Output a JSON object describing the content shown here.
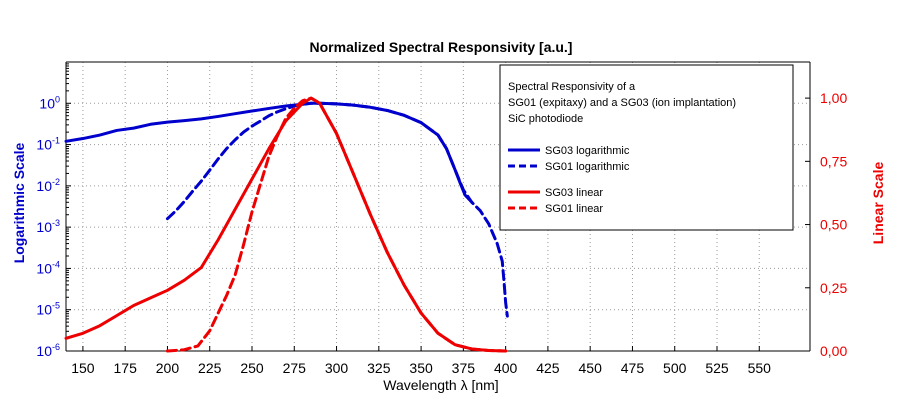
{
  "chart_data": {
    "type": "line",
    "title": "Normalized Spectral Responsivity [a.u.]",
    "xlabel": "Wavelength λ [nm]",
    "ylabel_left": "Logarithmic Scale",
    "ylabel_right": "Linear Scale",
    "xlim": [
      140,
      580
    ],
    "ylim_left": [
      1e-06,
      10
    ],
    "ylim_right": [
      0,
      1.1428
    ],
    "left_scale": "log",
    "right_scale": "linear",
    "grid": true,
    "legend_position": "top-right",
    "legend_title": [
      "Spectral Responsivity of a",
      "SG01 (expitaxy) and a SG03 (ion implantation)",
      "SiC photodiode"
    ],
    "x_ticks": [
      "150",
      "175",
      "200",
      "225",
      "250",
      "275",
      "300",
      "325",
      "350",
      "375",
      "400",
      "425",
      "450",
      "475",
      "500",
      "525",
      "550"
    ],
    "x_tick_values": [
      150,
      175,
      200,
      225,
      250,
      275,
      300,
      325,
      350,
      375,
      400,
      425,
      450,
      475,
      500,
      525,
      550
    ],
    "left_ticks": [
      {
        "base": "10",
        "exp": "0",
        "value": 1
      },
      {
        "base": "10",
        "exp": "-1",
        "value": 0.1
      },
      {
        "base": "10",
        "exp": "-2",
        "value": 0.01
      },
      {
        "base": "10",
        "exp": "-3",
        "value": 0.001
      },
      {
        "base": "10",
        "exp": "-4",
        "value": 0.0001
      },
      {
        "base": "10",
        "exp": "-5",
        "value": 1e-05
      },
      {
        "base": "10",
        "exp": "-6",
        "value": 1e-06
      }
    ],
    "right_ticks": [
      "1,00",
      "0,75",
      "0,50",
      "0,25",
      "0,00"
    ],
    "right_tick_values": [
      1.0,
      0.75,
      0.5,
      0.25,
      0.0
    ],
    "colors": {
      "blue": "#0000cc",
      "red": "#ee0000",
      "grid": "#9a9a9a",
      "axis": "#000000"
    },
    "series": [
      {
        "name": "SG03 logarithmic",
        "axis": "left",
        "color": "#0000cc",
        "dash": "solid",
        "points": [
          [
            140,
            0.12
          ],
          [
            150,
            0.14
          ],
          [
            160,
            0.17
          ],
          [
            170,
            0.22
          ],
          [
            180,
            0.25
          ],
          [
            190,
            0.31
          ],
          [
            200,
            0.35
          ],
          [
            210,
            0.38
          ],
          [
            220,
            0.42
          ],
          [
            230,
            0.48
          ],
          [
            240,
            0.56
          ],
          [
            250,
            0.65
          ],
          [
            260,
            0.75
          ],
          [
            270,
            0.86
          ],
          [
            280,
            0.95
          ],
          [
            285,
            1.0
          ],
          [
            290,
            1.0
          ],
          [
            300,
            0.97
          ],
          [
            310,
            0.9
          ],
          [
            320,
            0.8
          ],
          [
            330,
            0.67
          ],
          [
            340,
            0.51
          ],
          [
            350,
            0.34
          ],
          [
            360,
            0.17
          ],
          [
            365,
            0.08
          ],
          [
            370,
            0.025
          ],
          [
            373,
            0.012
          ],
          [
            376,
            0.006
          ],
          [
            380,
            0.004
          ]
        ]
      },
      {
        "name": "SG01 logarithmic",
        "axis": "left",
        "color": "#0000cc",
        "dash": "dashed",
        "points": [
          [
            200,
            0.0016
          ],
          [
            205,
            0.0025
          ],
          [
            210,
            0.0042
          ],
          [
            215,
            0.0075
          ],
          [
            220,
            0.013
          ],
          [
            225,
            0.024
          ],
          [
            230,
            0.045
          ],
          [
            235,
            0.08
          ],
          [
            240,
            0.13
          ],
          [
            245,
            0.2
          ],
          [
            250,
            0.28
          ],
          [
            255,
            0.37
          ],
          [
            260,
            0.5
          ],
          [
            265,
            0.62
          ],
          [
            270,
            0.74
          ],
          [
            275,
            0.85
          ],
          [
            280,
            0.95
          ],
          [
            285,
            1.0
          ],
          [
            290,
            1.0
          ],
          [
            300,
            0.97
          ],
          [
            310,
            0.9
          ],
          [
            320,
            0.8
          ],
          [
            330,
            0.67
          ],
          [
            340,
            0.51
          ],
          [
            350,
            0.34
          ],
          [
            360,
            0.17
          ],
          [
            365,
            0.08
          ],
          [
            370,
            0.025
          ],
          [
            375,
            0.008
          ],
          [
            380,
            0.004
          ],
          [
            385,
            0.0025
          ],
          [
            390,
            0.0012
          ],
          [
            395,
            0.0004
          ],
          [
            398,
            0.00015
          ],
          [
            399,
            5e-05
          ],
          [
            400,
            1.5e-05
          ],
          [
            401,
            7e-06
          ]
        ]
      },
      {
        "name": "SG03 linear",
        "axis": "right",
        "color": "#ee0000",
        "dash": "solid",
        "points": [
          [
            140,
            0.05
          ],
          [
            150,
            0.07
          ],
          [
            160,
            0.1
          ],
          [
            170,
            0.14
          ],
          [
            180,
            0.18
          ],
          [
            190,
            0.21
          ],
          [
            200,
            0.24
          ],
          [
            210,
            0.28
          ],
          [
            220,
            0.33
          ],
          [
            230,
            0.44
          ],
          [
            240,
            0.56
          ],
          [
            250,
            0.68
          ],
          [
            260,
            0.8
          ],
          [
            270,
            0.91
          ],
          [
            280,
            0.98
          ],
          [
            285,
            1.0
          ],
          [
            290,
            0.98
          ],
          [
            300,
            0.86
          ],
          [
            310,
            0.7
          ],
          [
            320,
            0.54
          ],
          [
            330,
            0.39
          ],
          [
            340,
            0.26
          ],
          [
            350,
            0.15
          ],
          [
            360,
            0.07
          ],
          [
            370,
            0.025
          ],
          [
            380,
            0.008
          ],
          [
            390,
            0.002
          ],
          [
            400,
            0.0
          ]
        ]
      },
      {
        "name": "SG01 linear",
        "axis": "right",
        "color": "#ee0000",
        "dash": "dashed",
        "points": [
          [
            200,
            0.0
          ],
          [
            210,
            0.005
          ],
          [
            218,
            0.02
          ],
          [
            225,
            0.08
          ],
          [
            230,
            0.15
          ],
          [
            235,
            0.22
          ],
          [
            240,
            0.3
          ],
          [
            245,
            0.42
          ],
          [
            250,
            0.55
          ],
          [
            255,
            0.66
          ],
          [
            260,
            0.77
          ],
          [
            265,
            0.85
          ],
          [
            270,
            0.92
          ],
          [
            275,
            0.96
          ],
          [
            280,
            0.99
          ],
          [
            285,
            1.0
          ],
          [
            290,
            0.98
          ],
          [
            300,
            0.86
          ],
          [
            310,
            0.7
          ],
          [
            320,
            0.54
          ],
          [
            330,
            0.39
          ],
          [
            340,
            0.26
          ],
          [
            350,
            0.15
          ],
          [
            360,
            0.07
          ],
          [
            370,
            0.025
          ],
          [
            380,
            0.008
          ],
          [
            390,
            0.002
          ],
          [
            400,
            0.0
          ]
        ]
      }
    ]
  }
}
